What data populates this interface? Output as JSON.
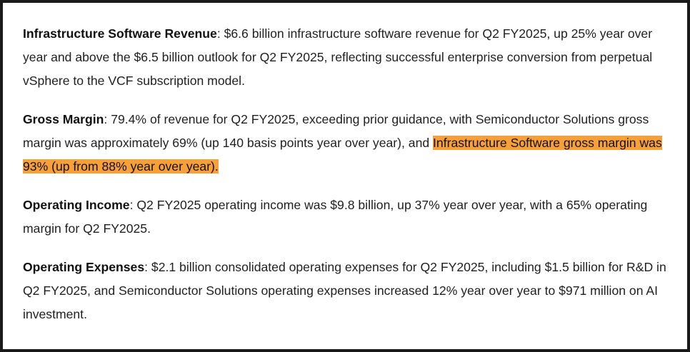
{
  "paragraphs": [
    {
      "term": "Infrastructure Software Revenue",
      "sep": ": ",
      "text": "$6.6 billion infrastructure software revenue for Q2 FY2025, up 25% year over year and above the $6.5 billion outlook for Q2 FY2025, reflecting successful enterprise conversion from perpetual vSphere to the VCF subscription model.",
      "highlight": "",
      "tail": ""
    },
    {
      "term": "Gross Margin",
      "sep": ": ",
      "text": "79.4% of revenue for Q2 FY2025, exceeding prior guidance, with Semiconductor Solutions gross margin was approximately 69% (up 140 basis points year over year), and ",
      "highlight": "Infrastructure Software gross margin was 93% (up from 88% year over year).",
      "tail": ""
    },
    {
      "term": "Operating Income",
      "sep": ": ",
      "text": "Q2 FY2025 operating income was $9.8 billion, up 37% year over year, with a 65% operating margin for Q2 FY2025.",
      "highlight": "",
      "tail": ""
    },
    {
      "term": "Operating Expenses",
      "sep": ": ",
      "text": "$2.1 billion consolidated operating expenses for Q2 FY2025, including $1.5 billion for R&D in Q2 FY2025, and Semiconductor Solutions operating expenses increased 12% year over year to $971 million on AI investment.",
      "highlight": "",
      "tail": ""
    }
  ],
  "colors": {
    "highlight": "#f7a03a",
    "border": "#1a1a1a",
    "text": "#1f1f1f"
  }
}
